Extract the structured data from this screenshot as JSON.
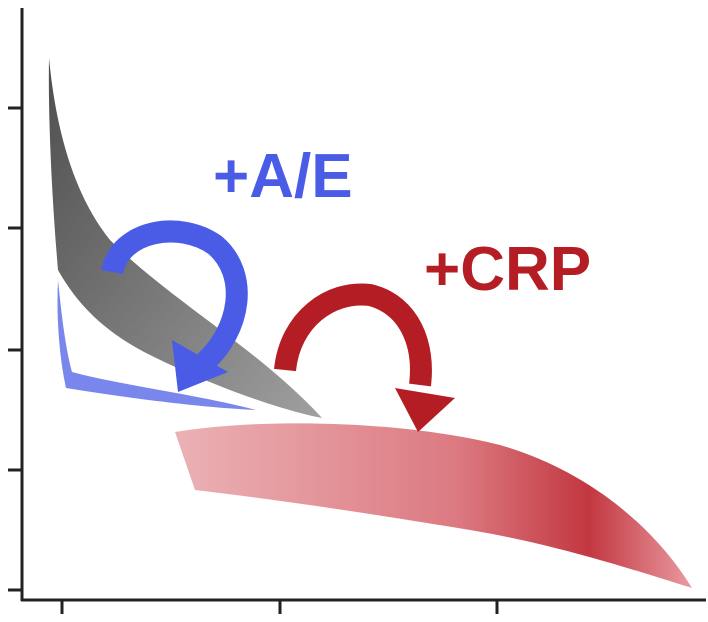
{
  "annotations": {
    "blue_label": "+A/E",
    "red_label": "+CRP"
  }
}
